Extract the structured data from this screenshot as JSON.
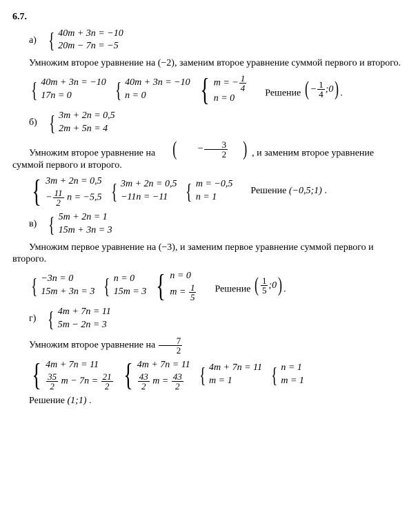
{
  "problem_number": "6.7.",
  "font_family": "Times New Roman",
  "base_fontsize": 14,
  "colors": {
    "text": "#000000",
    "background": "#ffffff"
  },
  "labels": {
    "solution": "Решение"
  },
  "parts": {
    "a": {
      "letter": "а)",
      "given": [
        "40m + 3n = −10",
        "20m − 7n = −5"
      ],
      "explain": "Умножим второе уравнение на (−2), заменим второе уравнение суммой первого и второго.",
      "step1": [
        "40m + 3n = −10",
        "17n = 0"
      ],
      "step2": [
        "40m + 3n = −10",
        "n = 0"
      ],
      "step3_line1_prefix": "m = −",
      "step3_line1_frac": {
        "num": "1",
        "den": "4"
      },
      "step3_line2": "n = 0",
      "answer_prefix": "−",
      "answer_frac": {
        "num": "1",
        "den": "4"
      },
      "answer_suffix": ";0"
    },
    "b": {
      "letter": "б)",
      "given": [
        "3m + 2n = 0,5",
        "2m + 5n = 4"
      ],
      "explain_before": "Умножим второе уравнение на ",
      "explain_frac": {
        "num": "3",
        "den": "2",
        "neg": true
      },
      "explain_after": ", и заменим второе уравнение суммой первого и второго.",
      "step1_line1": "3m + 2n = 0,5",
      "step1_line2_prefix": "−",
      "step1_line2_frac": {
        "num": "11",
        "den": "2"
      },
      "step1_line2_suffix": " n = −5,5",
      "step2": [
        "3m + 2n = 0,5",
        "−11n = −11"
      ],
      "step3": [
        "m = −0,5",
        "n = 1"
      ],
      "answer": "(−0,5;1)"
    },
    "v": {
      "letter": "в)",
      "given": [
        "5m + 2n = 1",
        "15m + 3n = 3"
      ],
      "explain": "Умножим первое уравнение на (−3), и заменим первое уравнение суммой первого и второго.",
      "step1": [
        "−3n = 0",
        "15m + 3n = 3"
      ],
      "step2": [
        "n = 0",
        "15m = 3"
      ],
      "step3_line1": "n = 0",
      "step3_line2_prefix": "m = ",
      "step3_line2_frac": {
        "num": "1",
        "den": "5"
      },
      "answer_frac": {
        "num": "1",
        "den": "5"
      },
      "answer_suffix": ";0"
    },
    "g": {
      "letter": "г)",
      "given": [
        "4m + 7n = 11",
        "5m − 2n = 3"
      ],
      "explain_before": "Умножим второе уравнение на ",
      "explain_frac": {
        "num": "7",
        "den": "2"
      },
      "step1_line1": "4m + 7n = 11",
      "step1_line2_frac1": {
        "num": "35",
        "den": "2"
      },
      "step1_line2_mid": " m − 7n = ",
      "step1_line2_frac2": {
        "num": "21",
        "den": "2"
      },
      "step2_line1": "4m + 7n = 11",
      "step2_line2_frac1": {
        "num": "43",
        "den": "2"
      },
      "step2_line2_mid": " m = ",
      "step2_line2_frac2": {
        "num": "43",
        "den": "2"
      },
      "step3": [
        "4m + 7n = 11",
        "m = 1"
      ],
      "step4": [
        "n = 1",
        "m = 1"
      ],
      "answer": "(1;1)"
    }
  }
}
